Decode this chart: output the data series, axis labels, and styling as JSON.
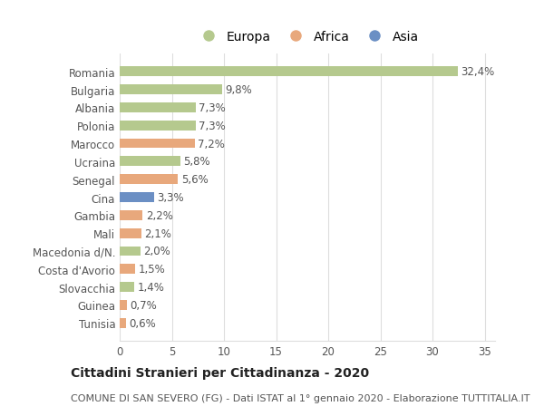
{
  "categories": [
    "Romania",
    "Bulgaria",
    "Albania",
    "Polonia",
    "Marocco",
    "Ucraina",
    "Senegal",
    "Cina",
    "Gambia",
    "Mali",
    "Macedonia d/N.",
    "Costa d'Avorio",
    "Slovacchia",
    "Guinea",
    "Tunisia"
  ],
  "values": [
    32.4,
    9.8,
    7.3,
    7.3,
    7.2,
    5.8,
    5.6,
    3.3,
    2.2,
    2.1,
    2.0,
    1.5,
    1.4,
    0.7,
    0.6
  ],
  "labels": [
    "32,4%",
    "9,8%",
    "7,3%",
    "7,3%",
    "7,2%",
    "5,8%",
    "5,6%",
    "3,3%",
    "2,2%",
    "2,1%",
    "2,0%",
    "1,5%",
    "1,4%",
    "0,7%",
    "0,6%"
  ],
  "continent": [
    "Europa",
    "Europa",
    "Europa",
    "Europa",
    "Africa",
    "Europa",
    "Africa",
    "Asia",
    "Africa",
    "Africa",
    "Europa",
    "Africa",
    "Europa",
    "Africa",
    "Africa"
  ],
  "colors": {
    "Europa": "#b5c98e",
    "Africa": "#e8a87c",
    "Asia": "#6b8fc4"
  },
  "xlim": [
    0,
    36
  ],
  "xticks": [
    0,
    5,
    10,
    15,
    20,
    25,
    30,
    35
  ],
  "title": "Cittadini Stranieri per Cittadinanza - 2020",
  "subtitle": "COMUNE DI SAN SEVERO (FG) - Dati ISTAT al 1° gennaio 2020 - Elaborazione TUTTITALIA.IT",
  "background_color": "#ffffff",
  "grid_color": "#dddddd",
  "bar_height": 0.55,
  "label_fontsize": 8.5,
  "tick_fontsize": 8.5,
  "title_fontsize": 10,
  "subtitle_fontsize": 8
}
